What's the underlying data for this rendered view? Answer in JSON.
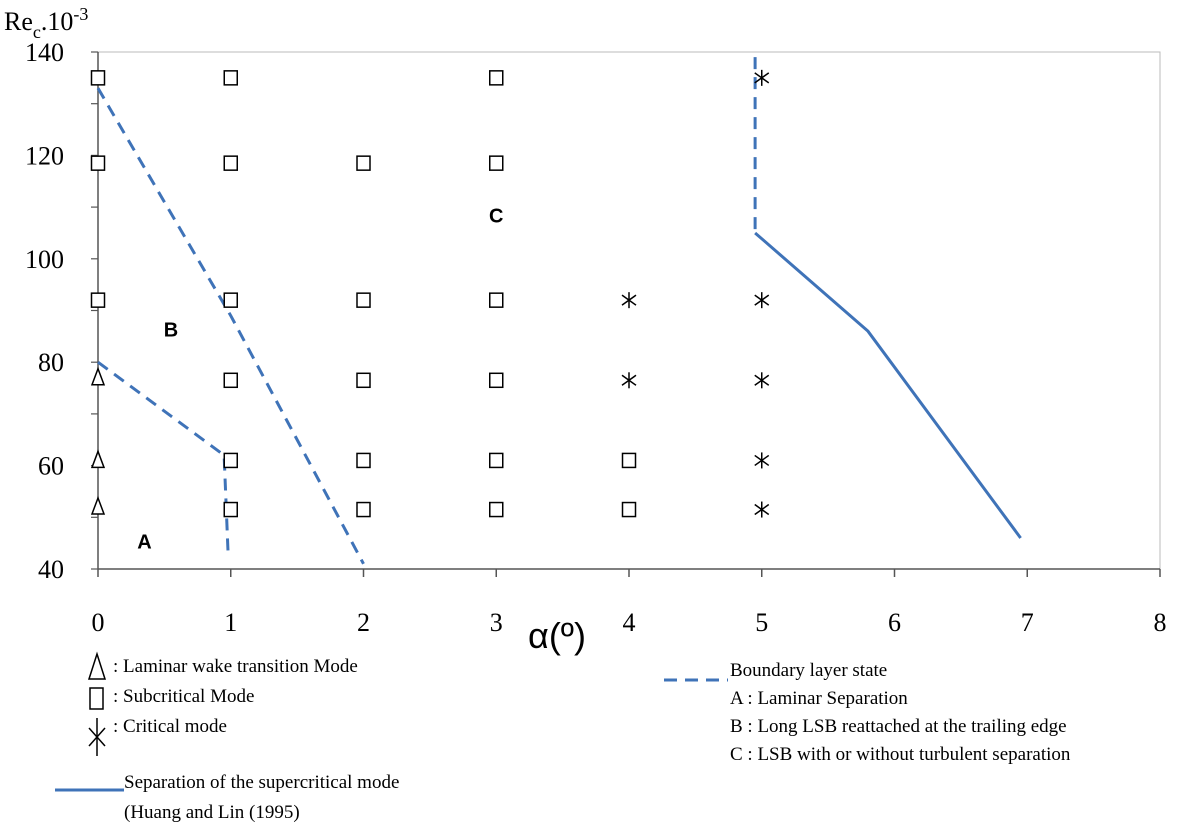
{
  "chart_data": {
    "type": "scatter",
    "ylabel_main": "Re",
    "ylabel_sub": "c",
    "ylabel_rest": ".10",
    "ylabel_sup": "-3",
    "xlabel": "α(º)",
    "xlim": [
      0,
      8
    ],
    "ylim": [
      40,
      140
    ],
    "x_ticks": [
      "0",
      "1",
      "2",
      "3",
      "4",
      "5",
      "6",
      "7",
      "8"
    ],
    "y_ticks": [
      "40",
      "60",
      "80",
      "100",
      "120",
      "140"
    ],
    "grid": false,
    "series": [
      {
        "name": ": Laminar  wake transition Mode",
        "marker": "triangle",
        "points": [
          [
            0,
            77
          ],
          [
            0,
            61
          ],
          [
            0,
            52
          ]
        ]
      },
      {
        "name": ": Subcritical Mode",
        "marker": "square",
        "points": [
          [
            0,
            135
          ],
          [
            1,
            135
          ],
          [
            3,
            135
          ],
          [
            0,
            118.5
          ],
          [
            1,
            118.5
          ],
          [
            2,
            118.5
          ],
          [
            3,
            118.5
          ],
          [
            0,
            92
          ],
          [
            1,
            92
          ],
          [
            2,
            92
          ],
          [
            3,
            92
          ],
          [
            1,
            76.5
          ],
          [
            2,
            76.5
          ],
          [
            3,
            76.5
          ],
          [
            1,
            61
          ],
          [
            2,
            61
          ],
          [
            3,
            61
          ],
          [
            4,
            61
          ],
          [
            1,
            51.5
          ],
          [
            2,
            51.5
          ],
          [
            3,
            51.5
          ],
          [
            4,
            51.5
          ]
        ]
      },
      {
        "name": ": Critical mode",
        "marker": "asterisk",
        "points": [
          [
            5,
            135
          ],
          [
            4,
            92
          ],
          [
            5,
            92
          ],
          [
            4,
            76.5
          ],
          [
            5,
            76.5
          ],
          [
            5,
            61
          ],
          [
            5,
            51.5
          ]
        ]
      }
    ],
    "boundary_lines": [
      {
        "points": [
          [
            0,
            80
          ],
          [
            0.95,
            62
          ],
          [
            0.98,
            43
          ]
        ]
      },
      {
        "points": [
          [
            0,
            133
          ],
          [
            1,
            89
          ],
          [
            2,
            41
          ]
        ]
      },
      {
        "points": [
          [
            4.95,
            139
          ],
          [
            4.95,
            106
          ],
          [
            4.95,
            105
          ]
        ]
      }
    ],
    "separation_line": {
      "points": [
        [
          4.95,
          105
        ],
        [
          5.8,
          86
        ],
        [
          6.95,
          46
        ]
      ]
    },
    "regions": [
      {
        "label": "A",
        "x": 0.35,
        "y": 44
      },
      {
        "label": "B",
        "x": 0.55,
        "y": 85
      },
      {
        "label": "C",
        "x": 3.0,
        "y": 107
      }
    ],
    "colors": {
      "line": "#3f73b8",
      "marker": "#000000",
      "axis": "#555555"
    }
  },
  "legend": {
    "left": [
      {
        "marker": "triangle",
        "label": ": Laminar  wake transition Mode"
      },
      {
        "marker": "square",
        "label": ": Subcritical Mode"
      },
      {
        "marker": "asterisk",
        "label": ": Critical mode"
      }
    ],
    "solid_line_label_1": "Separation of the supercritical mode",
    "solid_line_label_2": "(Huang and Lin (1995)",
    "dashed_title": "Boundary layer state",
    "dashed_items": [
      "A : Laminar Separation",
      "B : Long LSB reattached at the trailing edge",
      "C : LSB with or without turbulent separation"
    ]
  }
}
